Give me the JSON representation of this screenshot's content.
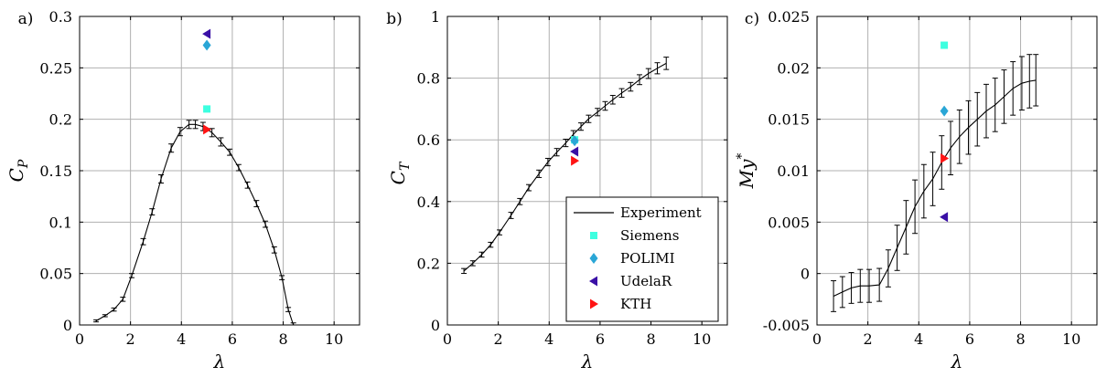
{
  "chart_data": [
    {
      "type": "scatter",
      "panel_label": "a)",
      "xlabel": "λ",
      "ylabel_main": "C",
      "ylabel_sub": "P",
      "ylabel_sup": "",
      "xlim": [
        0,
        11
      ],
      "ylim": [
        0,
        0.3
      ],
      "xticks": [
        0,
        2,
        4,
        6,
        8,
        10
      ],
      "yticks": [
        0,
        0.05,
        0.1,
        0.15,
        0.2,
        0.25,
        0.3
      ],
      "xtick_labels": [
        "0",
        "2",
        "4",
        "6",
        "8",
        "10"
      ],
      "ytick_labels": [
        "0",
        "0.05",
        "0.1",
        "0.15",
        "0.2",
        "0.25",
        "0.3"
      ],
      "grid": true,
      "experiment": {
        "name": "Experiment",
        "x": [
          0.65,
          1.0,
          1.35,
          1.7,
          2.05,
          2.5,
          2.85,
          3.2,
          3.6,
          3.95,
          4.3,
          4.55,
          4.85,
          5.2,
          5.55,
          5.9,
          6.25,
          6.6,
          6.95,
          7.3,
          7.65,
          7.95,
          8.2,
          8.4
        ],
        "y": [
          0.004,
          0.009,
          0.015,
          0.025,
          0.048,
          0.081,
          0.11,
          0.142,
          0.172,
          0.188,
          0.195,
          0.195,
          0.193,
          0.187,
          0.178,
          0.168,
          0.153,
          0.136,
          0.118,
          0.098,
          0.073,
          0.046,
          0.015,
          0.0
        ],
        "err": [
          0.001,
          0.001,
          0.0015,
          0.002,
          0.002,
          0.003,
          0.003,
          0.004,
          0.004,
          0.004,
          0.004,
          0.004,
          0.004,
          0.004,
          0.004,
          0.003,
          0.003,
          0.003,
          0.003,
          0.003,
          0.003,
          0.002,
          0.002,
          0.002
        ]
      },
      "simulations": [
        {
          "name": "Siemens",
          "x": 5.0,
          "y": 0.21
        },
        {
          "name": "POLIMI",
          "x": 5.0,
          "y": 0.272
        },
        {
          "name": "UdelaR",
          "x": 5.0,
          "y": 0.283
        },
        {
          "name": "KTH",
          "x": 5.0,
          "y": 0.19
        }
      ]
    },
    {
      "type": "scatter",
      "panel_label": "b)",
      "xlabel": "λ",
      "ylabel_main": "C",
      "ylabel_sub": "T",
      "ylabel_sup": "",
      "xlim": [
        0,
        11
      ],
      "ylim": [
        0,
        1
      ],
      "xticks": [
        0,
        2,
        4,
        6,
        8,
        10
      ],
      "yticks": [
        0,
        0.2,
        0.4,
        0.6,
        0.8,
        1
      ],
      "xtick_labels": [
        "0",
        "2",
        "4",
        "6",
        "8",
        "10"
      ],
      "ytick_labels": [
        "0",
        "0.2",
        "0.4",
        "0.6",
        "0.8",
        "1"
      ],
      "grid": true,
      "legend": {
        "placement": "lower-right",
        "entries": [
          "Experiment",
          "Siemens",
          "POLIMI",
          "UdelaR",
          "KTH"
        ]
      },
      "experiment": {
        "name": "Experiment",
        "x": [
          0.65,
          1.0,
          1.35,
          1.7,
          2.05,
          2.5,
          2.85,
          3.2,
          3.6,
          3.95,
          4.3,
          4.65,
          4.95,
          5.25,
          5.55,
          5.9,
          6.2,
          6.5,
          6.85,
          7.2,
          7.55,
          7.9,
          8.25,
          8.6
        ],
        "y": [
          0.175,
          0.2,
          0.228,
          0.26,
          0.3,
          0.355,
          0.4,
          0.445,
          0.49,
          0.528,
          0.56,
          0.59,
          0.618,
          0.643,
          0.668,
          0.69,
          0.71,
          0.73,
          0.752,
          0.772,
          0.795,
          0.815,
          0.832,
          0.848
        ],
        "err": [
          0.008,
          0.008,
          0.008,
          0.008,
          0.008,
          0.01,
          0.01,
          0.01,
          0.012,
          0.012,
          0.012,
          0.012,
          0.012,
          0.012,
          0.012,
          0.012,
          0.014,
          0.014,
          0.014,
          0.014,
          0.016,
          0.016,
          0.018,
          0.02
        ]
      },
      "simulations": [
        {
          "name": "Siemens",
          "x": 5.0,
          "y": 0.6
        },
        {
          "name": "POLIMI",
          "x": 5.0,
          "y": 0.597
        },
        {
          "name": "UdelaR",
          "x": 5.0,
          "y": 0.562
        },
        {
          "name": "KTH",
          "x": 5.0,
          "y": 0.532
        }
      ]
    },
    {
      "type": "scatter",
      "panel_label": "c)",
      "xlabel": "λ",
      "ylabel_main": "My",
      "ylabel_sub": "",
      "ylabel_sup": "*",
      "xlim": [
        0,
        11
      ],
      "ylim": [
        -0.005,
        0.025
      ],
      "xticks": [
        0,
        2,
        4,
        6,
        8,
        10
      ],
      "yticks": [
        -0.005,
        0,
        0.005,
        0.01,
        0.015,
        0.02,
        0.025
      ],
      "xtick_labels": [
        "0",
        "2",
        "4",
        "6",
        "8",
        "10"
      ],
      "ytick_labels": [
        "-0.005",
        "0",
        "0.005",
        "0.01",
        "0.015",
        "0.02",
        "0.025"
      ],
      "grid": true,
      "experiment": {
        "name": "Experiment",
        "x": [
          0.65,
          1.0,
          1.35,
          1.7,
          2.05,
          2.45,
          2.8,
          3.15,
          3.5,
          3.85,
          4.2,
          4.55,
          4.9,
          5.25,
          5.6,
          5.95,
          6.3,
          6.65,
          7.0,
          7.35,
          7.7,
          8.05,
          8.35,
          8.6
        ],
        "y": [
          -0.0022,
          -0.0018,
          -0.0014,
          -0.0012,
          -0.0012,
          -0.0011,
          0.0005,
          0.0025,
          0.0045,
          0.0065,
          0.008,
          0.0092,
          0.0108,
          0.0122,
          0.0133,
          0.0142,
          0.015,
          0.0158,
          0.0164,
          0.0172,
          0.018,
          0.0185,
          0.0187,
          0.0188
        ],
        "err": [
          0.0015,
          0.0015,
          0.0015,
          0.0016,
          0.0016,
          0.0016,
          0.0018,
          0.0022,
          0.0026,
          0.0026,
          0.0026,
          0.0026,
          0.0026,
          0.0026,
          0.0026,
          0.0026,
          0.0026,
          0.0026,
          0.0026,
          0.0026,
          0.0026,
          0.0026,
          0.0026,
          0.0025
        ]
      },
      "simulations": [
        {
          "name": "Siemens",
          "x": 5.0,
          "y": 0.0222
        },
        {
          "name": "POLIMI",
          "x": 5.0,
          "y": 0.0158
        },
        {
          "name": "UdelaR",
          "x": 5.0,
          "y": 0.0055
        },
        {
          "name": "KTH",
          "x": 5.0,
          "y": 0.0112
        }
      ]
    }
  ],
  "series_colors": {
    "Experiment": "#000000",
    "Siemens": "#3dffe0",
    "POLIMI": "#2aa6d6",
    "UdelaR": "#3a10a6",
    "KTH": "#ff1414"
  },
  "series_markers": {
    "Siemens": "square",
    "POLIMI": "diamond",
    "UdelaR": "triangle-left",
    "KTH": "triangle-right"
  },
  "grid_color": "#b0b0b0"
}
